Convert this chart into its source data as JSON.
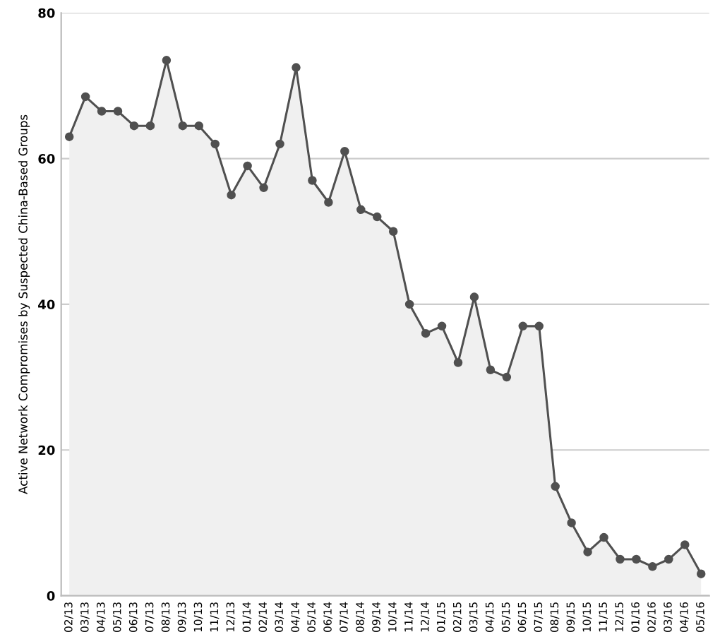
{
  "chart_data": {
    "type": "area",
    "ylabel": "Active Network Compromises by Suspected China-Based Groups",
    "categories": [
      "02/13",
      "03/13",
      "04/13",
      "05/13",
      "06/13",
      "07/13",
      "08/13",
      "09/13",
      "10/13",
      "11/13",
      "12/13",
      "01/14",
      "02/14",
      "03/14",
      "04/14",
      "05/14",
      "06/14",
      "07/14",
      "08/14",
      "09/14",
      "10/14",
      "11/14",
      "12/14",
      "01/15",
      "02/15",
      "03/15",
      "04/15",
      "05/15",
      "06/15",
      "07/15",
      "08/15",
      "09/15",
      "10/15",
      "11/15",
      "12/15",
      "01/16",
      "02/16",
      "03/16",
      "04/16",
      "05/16"
    ],
    "series": [
      {
        "color": "#505050",
        "values": [
          63,
          68.5,
          66.5,
          66.5,
          64.5,
          64.5,
          73.5,
          64.5,
          64.5,
          62,
          55,
          59,
          56,
          62,
          72.5,
          57,
          54,
          61,
          53,
          52,
          50,
          40,
          36,
          37,
          32,
          41,
          31,
          30,
          37,
          37,
          15,
          10,
          6,
          8,
          5,
          5,
          4,
          5,
          7,
          3
        ]
      }
    ],
    "ylim": [
      0,
      80
    ],
    "yticks": [
      0,
      20,
      40,
      60,
      80
    ],
    "grid": "y",
    "marker": "circle",
    "line_style": "solid",
    "legend": false
  }
}
